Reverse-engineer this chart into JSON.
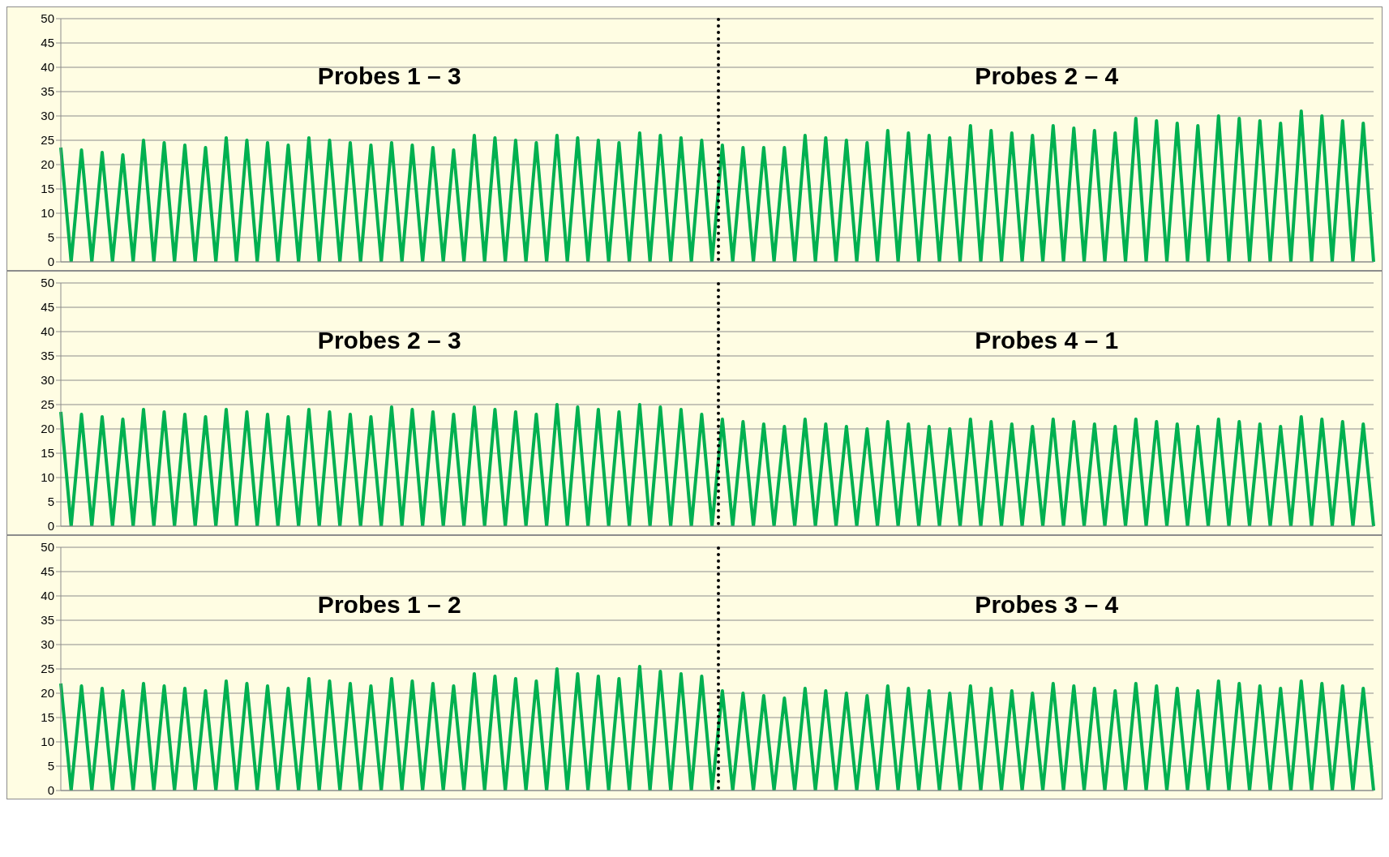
{
  "chart_data": [
    {
      "type": "line",
      "annotations": [
        "Probes 1 – 3",
        "Probes 2 – 4"
      ],
      "categories": [
        null,
        null,
        null,
        null,
        null,
        null,
        null,
        null,
        null,
        null,
        null,
        null,
        null,
        null,
        null,
        null,
        null,
        null,
        null,
        null,
        null,
        null,
        null,
        null,
        null,
        null,
        null,
        null,
        null,
        null,
        null,
        null,
        null,
        null,
        null,
        null,
        null,
        null,
        null,
        null,
        null,
        null,
        null,
        null,
        null,
        null,
        null,
        null,
        null,
        null,
        null,
        null,
        null,
        null,
        null,
        null,
        null,
        null,
        null,
        null,
        null,
        null,
        null,
        null,
        null,
        null,
        null,
        null,
        null,
        null,
        null,
        null,
        null,
        null,
        null,
        null,
        null,
        null,
        null,
        null,
        null,
        null,
        null,
        null,
        null,
        null,
        null,
        null,
        null,
        null,
        null,
        null,
        null,
        null,
        null,
        null,
        null,
        null,
        null,
        null,
        null,
        null,
        null,
        null,
        null,
        null,
        null,
        null,
        null,
        null,
        null,
        null,
        null,
        null,
        null,
        null,
        null,
        null,
        null,
        null,
        null,
        null,
        null,
        null,
        null,
        null,
        null,
        null
      ],
      "series": [
        {
          "color": "#00b050",
          "values": [
            23.5,
            0,
            23,
            0,
            22.5,
            0,
            22,
            0,
            25,
            0,
            24.5,
            0,
            24,
            0,
            23.5,
            0,
            25.5,
            0,
            25,
            0,
            24.5,
            0,
            24,
            0,
            25.5,
            0,
            25,
            0,
            24.5,
            0,
            24,
            0,
            24.5,
            0,
            24,
            0,
            23.5,
            0,
            23,
            0,
            26,
            0,
            25.5,
            0,
            25,
            0,
            24.5,
            0,
            26,
            0,
            25.5,
            0,
            25,
            0,
            24.5,
            0,
            26.5,
            0,
            26,
            0,
            25.5,
            0,
            25,
            0,
            24,
            0,
            23.5,
            0,
            23.5,
            0,
            23.5,
            0,
            26,
            0,
            25.5,
            0,
            25,
            0,
            24.5,
            0,
            27,
            0,
            26.5,
            0,
            26,
            0,
            25.5,
            0,
            28,
            0,
            27,
            0,
            26.5,
            0,
            26,
            0,
            28,
            0,
            27.5,
            0,
            27,
            0,
            26.5,
            0,
            29.5,
            0,
            29,
            0,
            28.5,
            0,
            28,
            0,
            30,
            0,
            29.5,
            0,
            29,
            0,
            28.5,
            0,
            31,
            0,
            30,
            0,
            29,
            0,
            28.5,
            0
          ]
        }
      ],
      "ylim": [
        0,
        50
      ],
      "yticks": [
        0,
        5,
        10,
        15,
        20,
        25,
        30,
        35,
        40,
        45,
        50
      ],
      "grid": "y",
      "tick_labels": "y",
      "marker": "none",
      "line_style": "solid"
    },
    {
      "type": "line",
      "annotations": [
        "Probes 2 – 3",
        "Probes 4 – 1"
      ],
      "categories": [
        null,
        null,
        null,
        null,
        null,
        null,
        null,
        null,
        null,
        null,
        null,
        null,
        null,
        null,
        null,
        null,
        null,
        null,
        null,
        null,
        null,
        null,
        null,
        null,
        null,
        null,
        null,
        null,
        null,
        null,
        null,
        null,
        null,
        null,
        null,
        null,
        null,
        null,
        null,
        null,
        null,
        null,
        null,
        null,
        null,
        null,
        null,
        null,
        null,
        null,
        null,
        null,
        null,
        null,
        null,
        null,
        null,
        null,
        null,
        null,
        null,
        null,
        null,
        null,
        null,
        null,
        null,
        null,
        null,
        null,
        null,
        null,
        null,
        null,
        null,
        null,
        null,
        null,
        null,
        null,
        null,
        null,
        null,
        null,
        null,
        null,
        null,
        null,
        null,
        null,
        null,
        null,
        null,
        null,
        null,
        null,
        null,
        null,
        null,
        null,
        null,
        null,
        null,
        null,
        null,
        null,
        null,
        null,
        null,
        null,
        null,
        null,
        null,
        null,
        null,
        null,
        null,
        null,
        null,
        null,
        null,
        null,
        null,
        null,
        null,
        null,
        null,
        null
      ],
      "series": [
        {
          "color": "#00b050",
          "values": [
            23.5,
            0,
            23,
            0,
            22.5,
            0,
            22,
            0,
            24,
            0,
            23.5,
            0,
            23,
            0,
            22.5,
            0,
            24,
            0,
            23.5,
            0,
            23,
            0,
            22.5,
            0,
            24,
            0,
            23.5,
            0,
            23,
            0,
            22.5,
            0,
            24.5,
            0,
            24,
            0,
            23.5,
            0,
            23,
            0,
            24.5,
            0,
            24,
            0,
            23.5,
            0,
            23,
            0,
            25,
            0,
            24.5,
            0,
            24,
            0,
            23.5,
            0,
            25,
            0,
            24.5,
            0,
            24,
            0,
            23,
            0,
            22,
            0,
            21.5,
            0,
            21,
            0,
            20.5,
            0,
            22,
            0,
            21,
            0,
            20.5,
            0,
            20,
            0,
            21.5,
            0,
            21,
            0,
            20.5,
            0,
            20,
            0,
            22,
            0,
            21.5,
            0,
            21,
            0,
            20.5,
            0,
            22,
            0,
            21.5,
            0,
            21,
            0,
            20.5,
            0,
            22,
            0,
            21.5,
            0,
            21,
            0,
            20.5,
            0,
            22,
            0,
            21.5,
            0,
            21,
            0,
            20.5,
            0,
            22.5,
            0,
            22,
            0,
            21.5,
            0,
            21,
            0
          ]
        }
      ],
      "ylim": [
        0,
        50
      ],
      "yticks": [
        0,
        5,
        10,
        15,
        20,
        25,
        30,
        35,
        40,
        45,
        50
      ],
      "grid": "y",
      "tick_labels": "y",
      "marker": "none",
      "line_style": "solid"
    },
    {
      "type": "line",
      "annotations": [
        "Probes 1 – 2",
        "Probes 3 – 4"
      ],
      "categories": [
        null,
        null,
        null,
        null,
        null,
        null,
        null,
        null,
        null,
        null,
        null,
        null,
        null,
        null,
        null,
        null,
        null,
        null,
        null,
        null,
        null,
        null,
        null,
        null,
        null,
        null,
        null,
        null,
        null,
        null,
        null,
        null,
        null,
        null,
        null,
        null,
        null,
        null,
        null,
        null,
        null,
        null,
        null,
        null,
        null,
        null,
        null,
        null,
        null,
        null,
        null,
        null,
        null,
        null,
        null,
        null,
        null,
        null,
        null,
        null,
        null,
        null,
        null,
        null,
        null,
        null,
        null,
        null,
        null,
        null,
        null,
        null,
        null,
        null,
        null,
        null,
        null,
        null,
        null,
        null,
        null,
        null,
        null,
        null,
        null,
        null,
        null,
        null,
        null,
        null,
        null,
        null,
        null,
        null,
        null,
        null,
        null,
        null,
        null,
        null,
        null,
        null,
        null,
        null,
        null,
        null,
        null,
        null,
        null,
        null,
        null,
        null,
        null,
        null,
        null,
        null,
        null,
        null,
        null,
        null,
        null,
        null,
        null,
        null,
        null,
        null,
        null,
        null
      ],
      "series": [
        {
          "color": "#00b050",
          "values": [
            22,
            0,
            21.5,
            0,
            21,
            0,
            20.5,
            0,
            22,
            0,
            21.5,
            0,
            21,
            0,
            20.5,
            0,
            22.5,
            0,
            22,
            0,
            21.5,
            0,
            21,
            0,
            23,
            0,
            22.5,
            0,
            22,
            0,
            21.5,
            0,
            23,
            0,
            22.5,
            0,
            22,
            0,
            21.5,
            0,
            24,
            0,
            23.5,
            0,
            23,
            0,
            22.5,
            0,
            25,
            0,
            24,
            0,
            23.5,
            0,
            23,
            0,
            25.5,
            0,
            24.5,
            0,
            24,
            0,
            23.5,
            0,
            20.5,
            0,
            20,
            0,
            19.5,
            0,
            19,
            0,
            21,
            0,
            20.5,
            0,
            20,
            0,
            19.5,
            0,
            21.5,
            0,
            21,
            0,
            20.5,
            0,
            20,
            0,
            21.5,
            0,
            21,
            0,
            20.5,
            0,
            20,
            0,
            22,
            0,
            21.5,
            0,
            21,
            0,
            20.5,
            0,
            22,
            0,
            21.5,
            0,
            21,
            0,
            20.5,
            0,
            22.5,
            0,
            22,
            0,
            21.5,
            0,
            21,
            0,
            22.5,
            0,
            22,
            0,
            21.5,
            0,
            21,
            0
          ]
        }
      ],
      "ylim": [
        0,
        50
      ],
      "yticks": [
        0,
        5,
        10,
        15,
        20,
        25,
        30,
        35,
        40,
        45,
        50
      ],
      "grid": "y",
      "tick_labels": "y",
      "marker": "none",
      "line_style": "solid"
    }
  ]
}
